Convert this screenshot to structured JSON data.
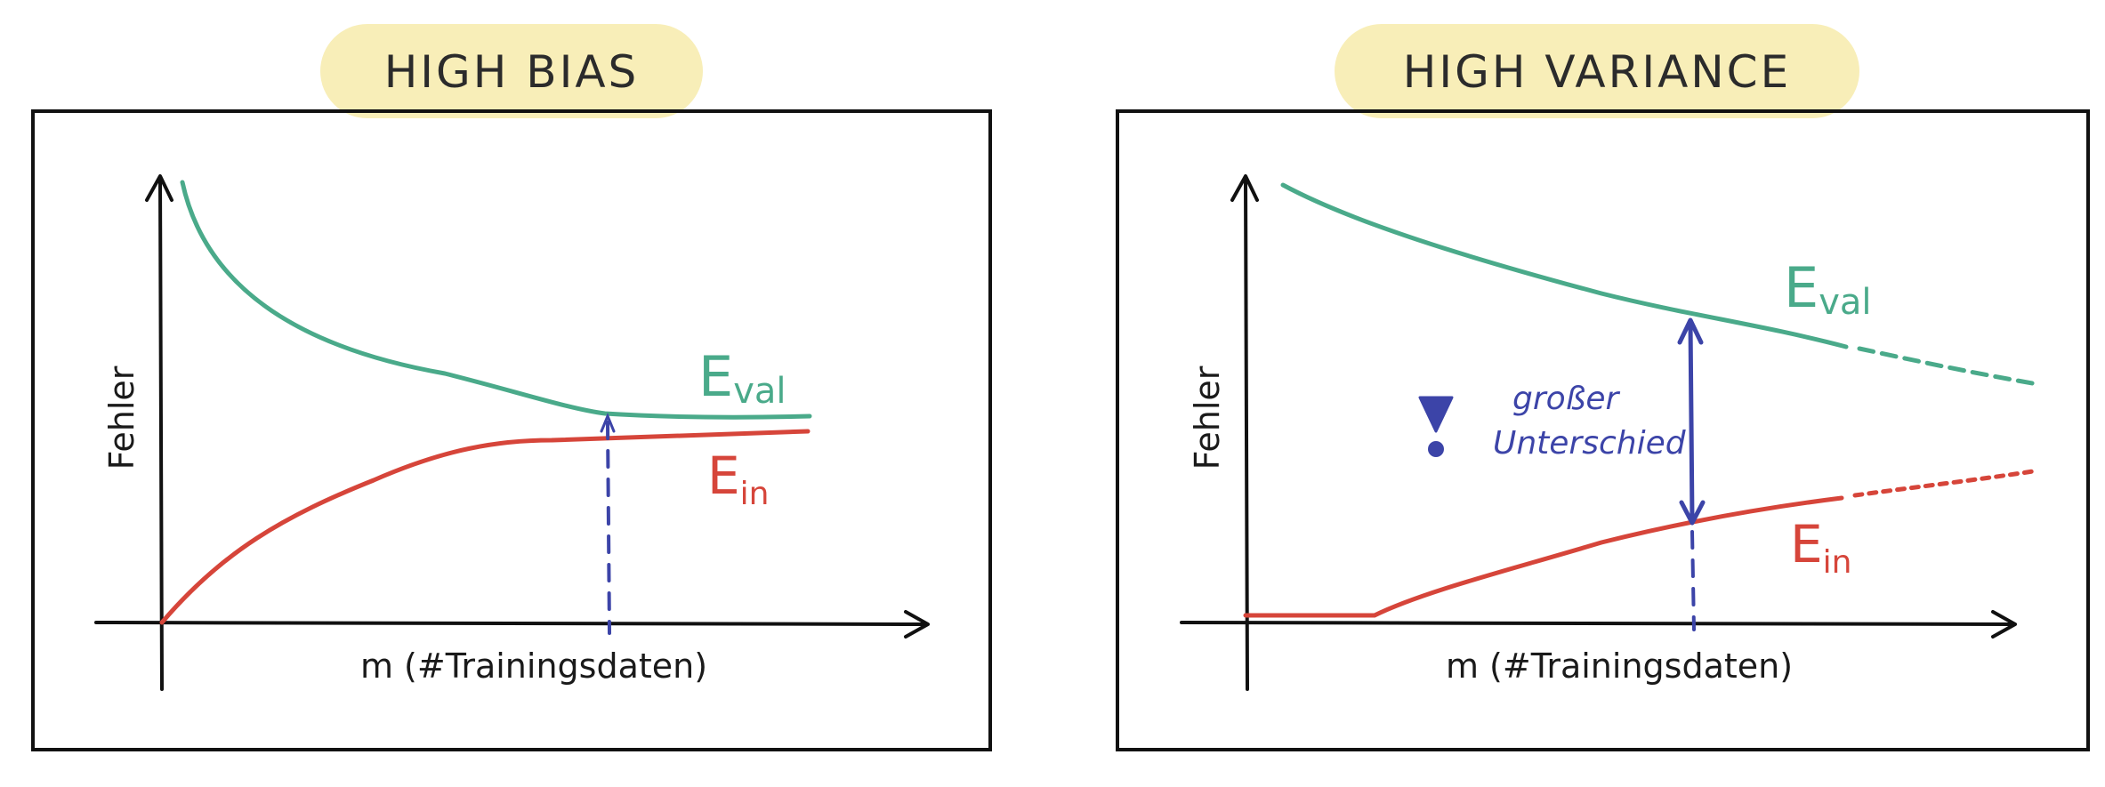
{
  "panels": [
    {
      "title": "HIGH BIAS",
      "y_label": "Fehler",
      "x_label": "m (#Trainingsdaten)",
      "curves": {
        "validation_label_main": "E",
        "validation_label_sub": "val",
        "training_label_main": "E",
        "training_label_sub": "in"
      }
    },
    {
      "title": "HIGH VARIANCE",
      "y_label": "Fehler",
      "x_label": "m (#Trainingsdaten)",
      "curves": {
        "validation_label_main": "E",
        "validation_label_sub": "val",
        "training_label_main": "E",
        "training_label_sub": "in"
      },
      "annotation": {
        "line1": "großer",
        "line2": "Unterschied"
      }
    }
  ],
  "colors": {
    "validation": "#4aaa8a",
    "training": "#d6453a",
    "gap": "#3c44a8",
    "title_highlight": "#f8eeb8",
    "frame": "#111111"
  }
}
